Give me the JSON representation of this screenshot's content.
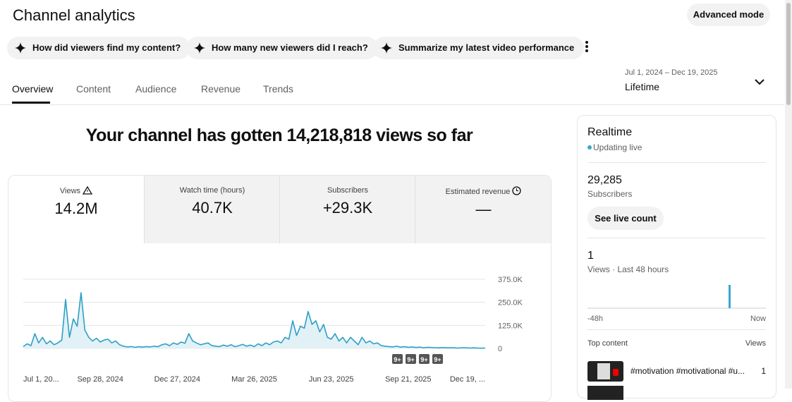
{
  "header": {
    "title": "Channel analytics",
    "advanced_mode": "Advanced mode"
  },
  "prompts": [
    "How did viewers find my content?",
    "How many new viewers did I reach?",
    "Summarize my latest video performance"
  ],
  "tabs": [
    "Overview",
    "Content",
    "Audience",
    "Revenue",
    "Trends"
  ],
  "date_range": {
    "range": "Jul 1, 2024 – Dec 19, 2025",
    "label": "Lifetime"
  },
  "headline": "Your channel has gotten 14,218,818 views so far",
  "metrics": [
    {
      "label": "Views",
      "value": "14.2M"
    },
    {
      "label": "Watch time (hours)",
      "value": "40.7K"
    },
    {
      "label": "Subscribers",
      "value": "+29.3K"
    },
    {
      "label": "Estimated revenue",
      "value": "—"
    }
  ],
  "chart_data": {
    "type": "line",
    "color": "#2e9fc7",
    "fill": "#e2f1f6",
    "grid": true,
    "categories": [
      "Jul 1, 20...",
      null,
      null,
      null,
      null,
      null,
      null,
      null,
      null,
      null,
      null,
      null,
      null,
      null,
      null,
      null,
      null,
      null,
      null,
      null,
      "Sep 28, 2024",
      null,
      null,
      null,
      null,
      null,
      null,
      null,
      null,
      null,
      null,
      null,
      null,
      null,
      null,
      null,
      null,
      null,
      null,
      null,
      "Dec 27, 2024",
      null,
      null,
      null,
      null,
      null,
      null,
      null,
      null,
      null,
      null,
      null,
      null,
      null,
      null,
      null,
      null,
      null,
      null,
      null,
      "Mar 26, 2025",
      null,
      null,
      null,
      null,
      null,
      null,
      null,
      null,
      null,
      null,
      null,
      null,
      null,
      null,
      null,
      null,
      null,
      null,
      null,
      "Jun 23, 2025",
      null,
      null,
      null,
      null,
      null,
      null,
      null,
      null,
      null,
      null,
      null,
      null,
      null,
      null,
      null,
      null,
      null,
      null,
      null,
      "Sep 21, 2025",
      null,
      null,
      null,
      null,
      null,
      null,
      null,
      null,
      null,
      null,
      null,
      null,
      null,
      null,
      null,
      null,
      null,
      null,
      null,
      "Dec 19, ..."
    ],
    "values": [
      10000,
      25000,
      15000,
      80000,
      30000,
      60000,
      25000,
      40000,
      20000,
      30000,
      45000,
      265000,
      60000,
      160000,
      120000,
      302000,
      100000,
      60000,
      40000,
      55000,
      35000,
      45000,
      50000,
      30000,
      40000,
      20000,
      12000,
      8000,
      10000,
      6000,
      9000,
      7000,
      10000,
      8000,
      12000,
      9000,
      20000,
      25000,
      15000,
      30000,
      22000,
      35000,
      28000,
      80000,
      40000,
      30000,
      20000,
      25000,
      30000,
      15000,
      12000,
      10000,
      18000,
      12000,
      20000,
      9000,
      15000,
      22000,
      12000,
      18000,
      10000,
      25000,
      15000,
      30000,
      20000,
      35000,
      40000,
      30000,
      60000,
      50000,
      150000,
      70000,
      120000,
      110000,
      200000,
      130000,
      150000,
      90000,
      130000,
      60000,
      50000,
      80000,
      40000,
      60000,
      30000,
      60000,
      40000,
      20000,
      60000,
      30000,
      40000,
      25000,
      30000,
      15000,
      12000,
      10000,
      8000,
      12000,
      7000,
      9000,
      6000,
      8000,
      5000,
      7000,
      4000,
      6000,
      5000,
      4000,
      3000,
      5000,
      3000,
      4000,
      3000,
      2000,
      4000,
      3000,
      2000,
      3000,
      2000,
      1000,
      2000
    ],
    "ylim": [
      0,
      375000
    ],
    "yticks": [
      0,
      {
        "value": 125000,
        "label": "125.0K"
      },
      {
        "value": 250000,
        "label": "250.0K"
      },
      {
        "value": 375000,
        "label": "375.0K"
      }
    ],
    "annotations": [
      "9+",
      "9+",
      "9+",
      "9+"
    ]
  },
  "realtime": {
    "title": "Realtime",
    "status": "Updating live",
    "subscribers": {
      "value": "29,285",
      "label": "Subscribers"
    },
    "live_count_button": "See live count",
    "views": {
      "value": "1",
      "label": "Views · Last 48 hours"
    },
    "axis": [
      "-48h",
      "Now"
    ],
    "top_content": {
      "title": "Top content",
      "column": "Views",
      "items": [
        {
          "title": "#motivation #motivational #u...",
          "views": "1"
        }
      ]
    }
  }
}
